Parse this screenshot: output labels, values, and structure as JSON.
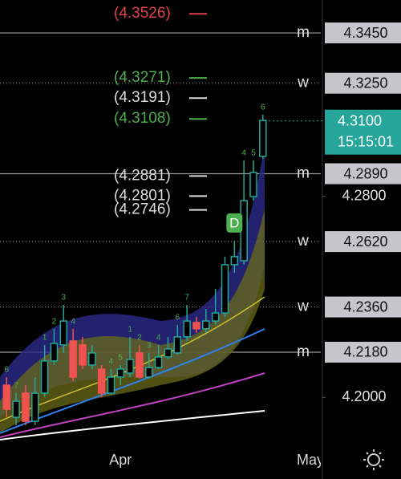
{
  "chart_data": {
    "type": "candlestick",
    "x": [
      0,
      1,
      2,
      3,
      4,
      5,
      6,
      7,
      8,
      9,
      10,
      11,
      12,
      13,
      14,
      15,
      16,
      17,
      18,
      19,
      20,
      21,
      22,
      23,
      24,
      25,
      26,
      27
    ],
    "open": [
      4.2049,
      4.1921,
      4.2017,
      4.1905,
      4.2017,
      4.2145,
      4.2209,
      4.2225,
      4.2209,
      4.2129,
      4.2113,
      4.2017,
      4.2081,
      4.2097,
      4.2177,
      4.2081,
      4.2119,
      4.2161,
      4.2177,
      4.2241,
      4.2298,
      4.2273,
      4.2304,
      4.2336,
      4.2528,
      4.2544,
      4.2799,
      4.2959
    ],
    "high": [
      4.2081,
      4.2017,
      4.2049,
      4.2081,
      4.2209,
      4.2273,
      4.2368,
      4.2273,
      4.2241,
      4.2209,
      4.2129,
      4.2113,
      4.2129,
      4.2241,
      4.2209,
      4.2177,
      4.2209,
      4.2241,
      4.2289,
      4.2368,
      4.232,
      4.2352,
      4.2432,
      4.256,
      4.2624,
      4.2943,
      4.2943,
      4.3125
    ],
    "low": [
      4.1921,
      4.189,
      4.189,
      4.189,
      4.2001,
      4.2129,
      4.2177,
      4.2065,
      4.2113,
      4.2113,
      4.2001,
      4.2011,
      4.2049,
      4.2081,
      4.2075,
      4.2075,
      4.2113,
      4.2151,
      4.217,
      4.2225,
      4.2257,
      4.2257,
      4.2289,
      4.232,
      4.2496,
      4.2528,
      4.2783,
      4.2949
    ],
    "close": [
      4.1953,
      4.1985,
      4.1905,
      4.2017,
      4.2145,
      4.2215,
      4.2304,
      4.2081,
      4.2129,
      4.2177,
      4.2017,
      4.2081,
      4.2113,
      4.2151,
      4.2081,
      4.2119,
      4.2161,
      4.2193,
      4.2241,
      4.2304,
      4.2273,
      4.2304,
      4.2336,
      4.2528,
      4.256,
      4.2783,
      4.2895,
      4.3102
    ],
    "setup_counts": [
      "6",
      "7",
      null,
      null,
      "1",
      "2",
      "3",
      "4",
      null,
      null,
      null,
      "4",
      "5",
      "1",
      "2",
      "3",
      "4",
      null,
      "6",
      "7",
      null,
      null,
      null,
      null,
      null,
      "4",
      "5",
      "6"
    ],
    "up_color": "#26a69a",
    "down_color": "#ef5350",
    "xlim": [
      -0.7,
      33.1
    ],
    "xticks": [
      {
        "value": 12,
        "label": "Apr"
      },
      {
        "value": 32,
        "label": "May"
      }
    ],
    "ylim": [
      4.1832,
      4.3581
    ],
    "yticks": [
      {
        "value": 4.2,
        "label": "4.2000"
      },
      {
        "value": 4.28,
        "label": "4.2800"
      }
    ],
    "levels": [
      {
        "value": 4.345,
        "label": "4.3450",
        "mark": "m"
      },
      {
        "value": 4.325,
        "label": "4.3250",
        "mark": "w"
      },
      {
        "value": 4.289,
        "label": "4.2890",
        "mark": "m"
      },
      {
        "value": 4.262,
        "label": "4.2620",
        "mark": "w"
      },
      {
        "value": 4.236,
        "label": "4.2360",
        "mark": "w"
      },
      {
        "value": 4.218,
        "label": "4.2180",
        "mark": "m"
      }
    ],
    "price_labels": [
      {
        "value": 4.3526,
        "label": "(4.3526)",
        "color": "#e5414b"
      },
      {
        "value": 4.3271,
        "label": "(4.3271)",
        "color": "#4caf50"
      },
      {
        "value": 4.3191,
        "label": "(4.3191)",
        "color": "#dddddd"
      },
      {
        "value": 4.3108,
        "label": "(4.3108)",
        "color": "#4caf50"
      },
      {
        "value": 4.2881,
        "label": "(4.2881)",
        "color": "#dddddd"
      },
      {
        "value": 4.2801,
        "label": "(4.2801)",
        "color": "#dddddd"
      },
      {
        "value": 4.2746,
        "label": "(4.2746)",
        "color": "#dddddd"
      }
    ],
    "current_price": {
      "value": 4.31,
      "label": "4.3100",
      "time": "15:15:01",
      "color": "#26a69a"
    },
    "badge": "D"
  }
}
